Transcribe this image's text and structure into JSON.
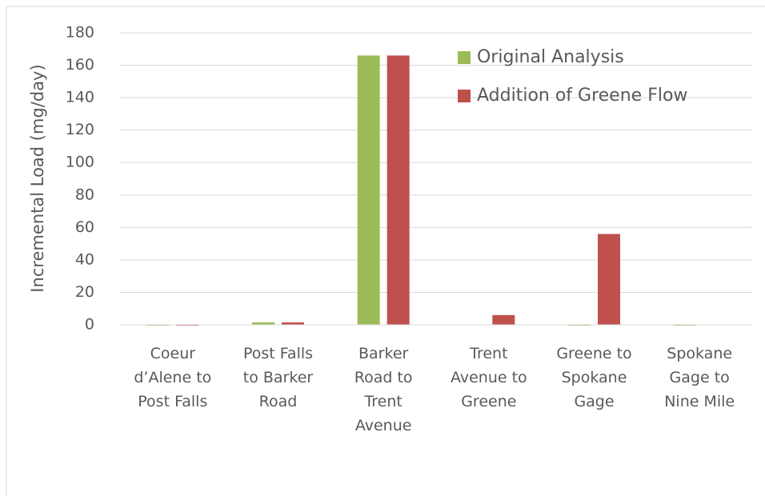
{
  "chart_data": {
    "type": "bar",
    "y_label": "Incremental Load (mg/day)",
    "categories": [
      "Coeur d’Alene to Post Falls",
      "Post Falls to Barker Road",
      "Barker Road to Trent Avenue",
      "Trent Avenue to Greene",
      "Greene to Spokane Gage",
      "Spokane Gage to Nine Mile"
    ],
    "series": [
      {
        "name": "Original Analysis",
        "color": "#9bbb59",
        "values": [
          -0.5,
          1.5,
          166,
          0,
          -0.5,
          -0.5
        ]
      },
      {
        "name": "Addition of Greene Flow",
        "color": "#c0504d",
        "values": [
          -0.5,
          1.5,
          166,
          6,
          56,
          0
        ]
      }
    ],
    "ylim": [
      0,
      180
    ],
    "yticks": [
      0,
      20,
      40,
      60,
      80,
      100,
      120,
      140,
      160,
      180
    ],
    "grid": true,
    "legend": "top-right"
  }
}
